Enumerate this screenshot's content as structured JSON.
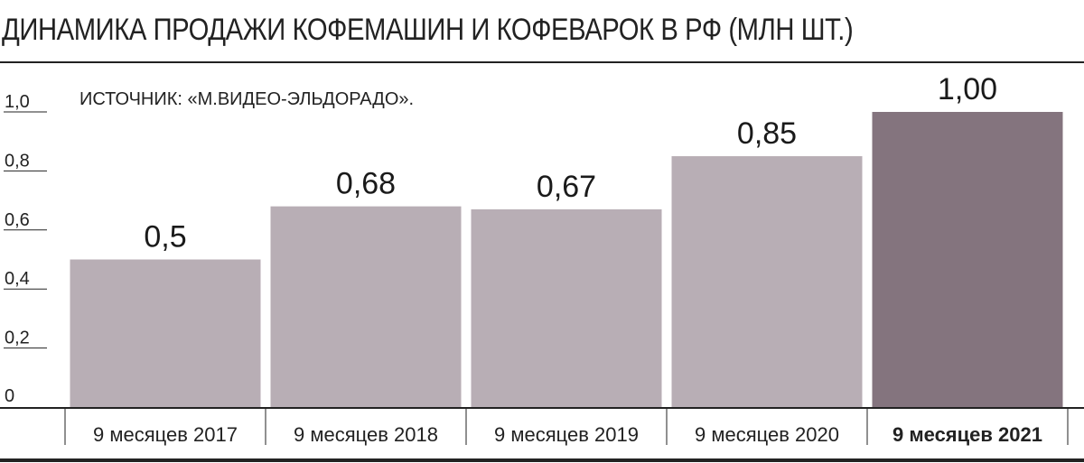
{
  "chart_data": {
    "type": "bar",
    "title": "ДИНАМИКА ПРОДАЖИ КОФЕМАШИН И КОФЕВАРОК В РФ (МЛН ШТ.)",
    "annotation": "ИСТОЧНИК: «М.ВИДЕО-ЭЛЬДОРАДО».",
    "categories": [
      "9 месяцев 2017",
      "9 месяцев 2018",
      "9 месяцев 2019",
      "9 месяцев 2020",
      "9 месяцев 2021"
    ],
    "values": [
      0.5,
      0.68,
      0.67,
      0.85,
      1.0
    ],
    "value_labels": [
      "0,5",
      "0,68",
      "0,67",
      "0,85",
      "1,00"
    ],
    "ylim": [
      0,
      1.0
    ],
    "y_ticks": [
      {
        "value": 0,
        "label": "0"
      },
      {
        "value": 0.2,
        "label": "0,2"
      },
      {
        "value": 0.4,
        "label": "0,4"
      },
      {
        "value": 0.6,
        "label": "0,6"
      },
      {
        "value": 0.8,
        "label": "0,8"
      },
      {
        "value": 1.0,
        "label": "1,0"
      }
    ],
    "xlabel": "",
    "ylabel": "",
    "grid": false,
    "colors": {
      "bar": "#b8aeb5",
      "highlight_bar": "#84747e",
      "axis": "#222222"
    },
    "highlight_index": 4
  }
}
